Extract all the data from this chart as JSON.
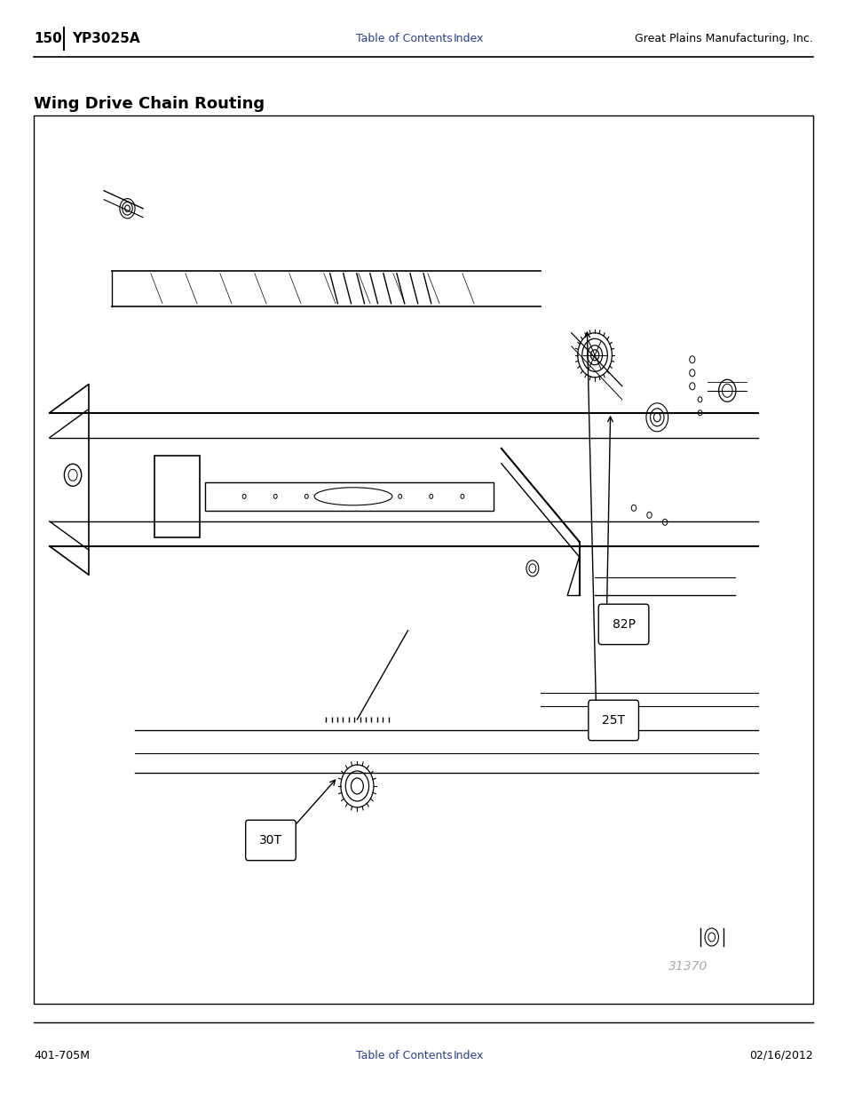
{
  "page_number": "150",
  "model": "YP3025A",
  "header_center_links": [
    "Table of Contents",
    "Index"
  ],
  "header_right": "Great Plains Manufacturing, Inc.",
  "footer_left": "401-705M",
  "footer_center_links": [
    "Table of Contents",
    "Index"
  ],
  "footer_right": "02/16/2012",
  "section_title": "Wing Drive Chain Routing",
  "diagram_number": "31370",
  "background_color": "#ffffff",
  "box_color": "#000000",
  "text_color": "#000000",
  "link_color": "#2a3f8f",
  "diagram_watermark_color": "#aaaaaa"
}
